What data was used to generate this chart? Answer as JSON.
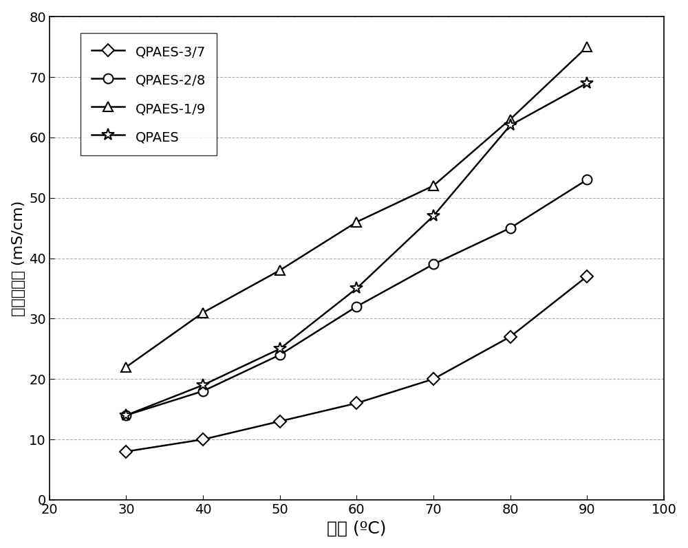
{
  "x": [
    30,
    40,
    50,
    60,
    70,
    80,
    90
  ],
  "series": {
    "QPAES-3/7": [
      8,
      10,
      13,
      16,
      20,
      27,
      37
    ],
    "QPAES-2/8": [
      14,
      18,
      24,
      32,
      39,
      45,
      53
    ],
    "QPAES-1/9": [
      22,
      31,
      38,
      46,
      52,
      63,
      75
    ],
    "QPAES": [
      14,
      19,
      25,
      35,
      47,
      62,
      69
    ]
  },
  "markers": {
    "QPAES-3/7": "D",
    "QPAES-2/8": "o",
    "QPAES-1/9": "^",
    "QPAES": "*"
  },
  "xlabel": "温度 (ºC)",
  "ylabel": "离子传导率 (mS/cm)",
  "xlim": [
    20,
    100
  ],
  "ylim": [
    0,
    80
  ],
  "xticks": [
    20,
    30,
    40,
    50,
    60,
    70,
    80,
    90,
    100
  ],
  "yticks": [
    0,
    10,
    20,
    30,
    40,
    50,
    60,
    70,
    80
  ],
  "grid_color": "#aaaaaa",
  "line_color": "#000000",
  "background_color": "#ffffff",
  "legend_order": [
    "QPAES-3/7",
    "QPAES-2/8",
    "QPAES-1/9",
    "QPAES"
  ],
  "markersize_diamond": 9,
  "markersize_circle": 10,
  "markersize_triangle": 10,
  "markersize_star": 13,
  "linewidth": 1.8,
  "xlabel_fontsize": 18,
  "ylabel_fontsize": 16,
  "tick_fontsize": 14,
  "legend_fontsize": 14
}
